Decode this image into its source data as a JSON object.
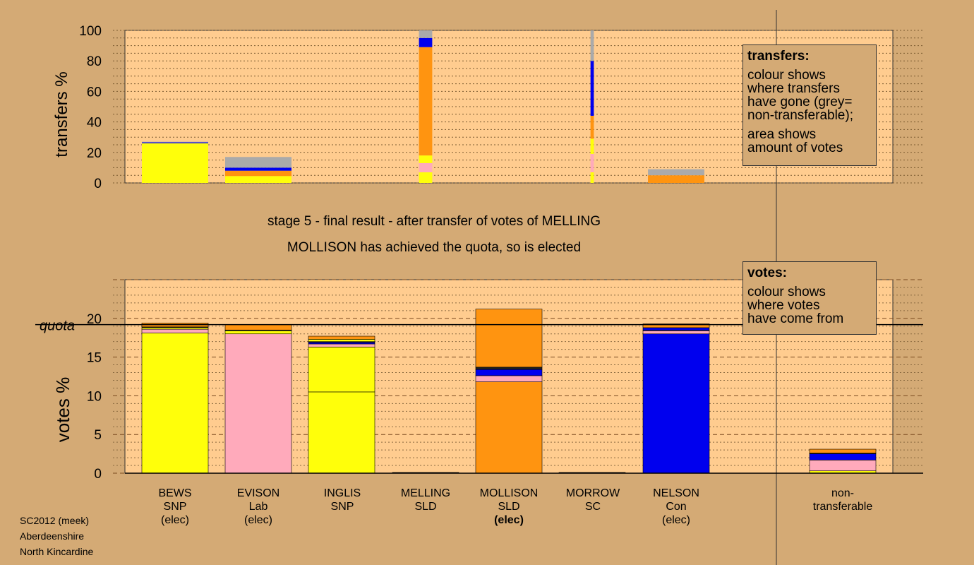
{
  "stage_text": "stage 5 - final result - after transfer of votes of MELLING",
  "elected_text": "MOLLISON has achieved the quota, so is elected",
  "colors": {
    "background": "#d4aa75",
    "panel": "#ffcc8f",
    "SNP": "#ffff0a",
    "Lab": "#ffaabb",
    "SLD": "#ff9410",
    "Con": "#0000ee",
    "SC": "#202020",
    "non_transferable": "#aaaaaa"
  },
  "legend_transfers": {
    "title": "transfers:",
    "lines": [
      "colour shows",
      "where transfers",
      "have gone (grey=",
      "non-transferable);"
    ],
    "lines2": [
      "area shows",
      "amount of votes"
    ]
  },
  "legend_votes": {
    "title": "votes:",
    "lines": [
      "colour shows",
      "where votes",
      "have come from"
    ]
  },
  "candidates": [
    {
      "name": "BEWS",
      "party": "SNP",
      "status": "(elec)",
      "status_bold": false
    },
    {
      "name": "EVISON",
      "party": "Lab",
      "status": "(elec)",
      "status_bold": false
    },
    {
      "name": "INGLIS",
      "party": "SNP",
      "status": "",
      "status_bold": false
    },
    {
      "name": "MELLING",
      "party": "SLD",
      "status": "",
      "status_bold": false
    },
    {
      "name": "MOLLISON",
      "party": "SLD",
      "status": "(elec)",
      "status_bold": true
    },
    {
      "name": "MORROW",
      "party": "SC",
      "status": "",
      "status_bold": false
    },
    {
      "name": "NELSON",
      "party": "Con",
      "status": "(elec)",
      "status_bold": false
    },
    {
      "name": "non-",
      "party": "transferable",
      "status": "",
      "status_bold": false
    }
  ],
  "footer": [
    "SC2012 (meek)",
    "Aberdeenshire",
    "North Kincardine"
  ],
  "chart_data": [
    {
      "type": "bar",
      "stacked": true,
      "ylabel": "transfers %",
      "ylim": [
        0,
        100
      ],
      "yticks": [
        0,
        20,
        40,
        60,
        80,
        100
      ],
      "categories": [
        "BEWS",
        "EVISON",
        "INGLIS",
        "MELLING",
        "MOLLISON",
        "MORROW",
        "NELSON"
      ],
      "bar_width_fraction": [
        1.0,
        1.0,
        0,
        0.2,
        0,
        0.05,
        0.85
      ],
      "stacks": [
        [
          {
            "party": "SNP",
            "value": 26
          },
          {
            "party": "Con",
            "value": 0.6
          },
          {
            "party": "non_transferable",
            "value": 0.4
          }
        ],
        [
          {
            "party": "SNP",
            "value": 4.5
          },
          {
            "party": "SLD",
            "value": 3.5
          },
          {
            "party": "Con",
            "value": 2
          },
          {
            "party": "non_transferable",
            "value": 7
          }
        ],
        [],
        [
          {
            "party": "SNP",
            "value": 7
          },
          {
            "party": "Lab",
            "value": 6
          },
          {
            "party": "SNP",
            "value": 5
          },
          {
            "party": "SLD",
            "value": 71
          },
          {
            "party": "Con",
            "value": 6
          },
          {
            "party": "non_transferable",
            "value": 5
          }
        ],
        [],
        [
          {
            "party": "SNP",
            "value": 7
          },
          {
            "party": "Lab",
            "value": 12
          },
          {
            "party": "SNP",
            "value": 10
          },
          {
            "party": "SLD",
            "value": 15
          },
          {
            "party": "Con",
            "value": 36
          },
          {
            "party": "non_transferable",
            "value": 20
          }
        ],
        [
          {
            "party": "SLD",
            "value": 5
          },
          {
            "party": "non_transferable",
            "value": 4
          }
        ]
      ]
    },
    {
      "type": "bar",
      "stacked": true,
      "ylabel": "votes %",
      "ylim": [
        0,
        25
      ],
      "yticks": [
        0,
        5,
        10,
        15,
        20
      ],
      "quota": 19.2,
      "quota_label": "quota",
      "categories": [
        "BEWS",
        "EVISON",
        "INGLIS",
        "MELLING",
        "MOLLISON",
        "MORROW",
        "NELSON",
        "non-transferable"
      ],
      "stacks": [
        [
          {
            "party": "SNP",
            "value": 18.1
          },
          {
            "party": "Lab",
            "value": 0.5
          },
          {
            "party": "SNP",
            "value": 0.2
          },
          {
            "party": "SC",
            "value": 0.1
          },
          {
            "party": "SLD",
            "value": 0.5
          }
        ],
        [
          {
            "party": "Lab",
            "value": 18.0
          },
          {
            "party": "SNP",
            "value": 0.4
          },
          {
            "party": "SC",
            "value": 0.1
          },
          {
            "party": "SLD",
            "value": 0.7
          }
        ],
        [
          {
            "party": "SNP",
            "value": 10.5
          },
          {
            "party": "SNP",
            "value": 5.8
          },
          {
            "party": "Lab",
            "value": 0.4
          },
          {
            "party": "Con",
            "value": 0.2
          },
          {
            "party": "SC",
            "value": 0.1
          },
          {
            "party": "SNP",
            "value": 0.3
          },
          {
            "party": "SLD",
            "value": 0.4
          }
        ],
        [
          {
            "party": "SC",
            "value": 0.1
          }
        ],
        [
          {
            "party": "SLD",
            "value": 11.8
          },
          {
            "party": "Lab",
            "value": 0.8
          },
          {
            "party": "Con",
            "value": 0.8
          },
          {
            "party": "SC",
            "value": 0.3
          },
          {
            "party": "SLD",
            "value": 7.5
          }
        ],
        [
          {
            "party": "SC",
            "value": 0.1
          }
        ],
        [
          {
            "party": "Con",
            "value": 18.0
          },
          {
            "party": "Lab",
            "value": 0.4
          },
          {
            "party": "Con",
            "value": 0.1
          },
          {
            "party": "Con",
            "value": 0.3
          },
          {
            "party": "SLD",
            "value": 0.5
          }
        ],
        [
          {
            "party": "SNP",
            "value": 0.3
          },
          {
            "party": "Lab",
            "value": 1.4
          },
          {
            "party": "Con",
            "value": 0.8
          },
          {
            "party": "SC",
            "value": 0.1
          },
          {
            "party": "SLD",
            "value": 0.5
          }
        ]
      ]
    }
  ]
}
